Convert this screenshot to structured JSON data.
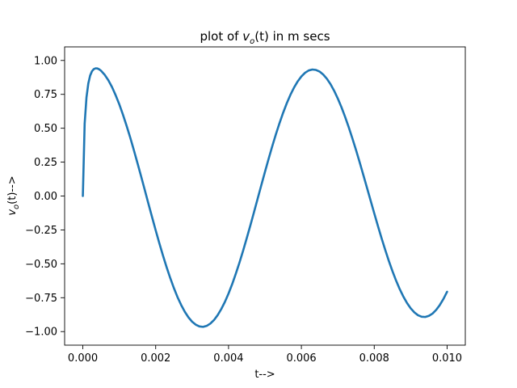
{
  "chart_data": {
    "type": "line",
    "title": {
      "prefix": "plot of ",
      "symbol": "v",
      "subscript": "o",
      "suffix": "(t) in m secs"
    },
    "xlabel": "t-->",
    "ylabel": {
      "symbol": "v",
      "subscript": "o",
      "suffix": "(t)-->"
    },
    "xlim": [
      -0.0005,
      0.0105
    ],
    "ylim": [
      -1.1,
      1.1
    ],
    "xticks": [
      0.0,
      0.002,
      0.004,
      0.006,
      0.008,
      0.01
    ],
    "xtick_labels": [
      "0.000",
      "0.002",
      "0.004",
      "0.006",
      "0.008",
      "0.010"
    ],
    "yticks": [
      -1.0,
      -0.75,
      -0.5,
      -0.25,
      0.0,
      0.25,
      0.5,
      0.75,
      1.0
    ],
    "ytick_labels": [
      "−1.00",
      "−0.75",
      "−0.50",
      "−0.25",
      "0.00",
      "0.25",
      "0.50",
      "0.75",
      "1.00"
    ],
    "grid": false,
    "series": [
      {
        "color": "#1f77b4",
        "x": [
          0.0,
          5e-05,
          0.0001,
          0.00015,
          0.0002,
          0.00025,
          0.0003,
          0.00035,
          0.0004,
          0.00045,
          0.0005,
          0.0006,
          0.0007,
          0.0008,
          0.0009,
          0.001,
          0.0011,
          0.0012,
          0.0013,
          0.0014,
          0.0015,
          0.0016,
          0.0017,
          0.0018,
          0.0019,
          0.002,
          0.0021,
          0.0022,
          0.0023,
          0.0024,
          0.0025,
          0.0026,
          0.0027,
          0.0028,
          0.0029,
          0.003,
          0.0031,
          0.0032,
          0.0033,
          0.0034,
          0.0035,
          0.0036,
          0.0037,
          0.0038,
          0.0039,
          0.004,
          0.0041,
          0.0042,
          0.0043,
          0.0044,
          0.0045,
          0.0046,
          0.0047,
          0.0048,
          0.0049,
          0.005,
          0.0051,
          0.0052,
          0.0053,
          0.0054,
          0.0055,
          0.0056,
          0.0057,
          0.0058,
          0.0059,
          0.006,
          0.0061,
          0.0062,
          0.0063,
          0.0064,
          0.0065,
          0.0066,
          0.0067,
          0.0068,
          0.0069,
          0.007,
          0.0071,
          0.0072,
          0.0073,
          0.0074,
          0.0075,
          0.0076,
          0.0077,
          0.0078,
          0.0079,
          0.008,
          0.0081,
          0.0082,
          0.0083,
          0.0084,
          0.0085,
          0.0086,
          0.0087,
          0.0088,
          0.0089,
          0.009,
          0.0091,
          0.0092,
          0.0093,
          0.0094,
          0.0095,
          0.0096,
          0.0097,
          0.0098,
          0.0099,
          0.01
        ],
        "y": [
          0.0,
          0.534,
          0.727,
          0.83,
          0.888,
          0.92,
          0.936,
          0.942,
          0.941,
          0.934,
          0.924,
          0.894,
          0.854,
          0.804,
          0.744,
          0.677,
          0.601,
          0.519,
          0.432,
          0.339,
          0.243,
          0.145,
          0.045,
          -0.056,
          -0.155,
          -0.253,
          -0.348,
          -0.439,
          -0.525,
          -0.605,
          -0.679,
          -0.746,
          -0.804,
          -0.854,
          -0.895,
          -0.927,
          -0.949,
          -0.962,
          -0.965,
          -0.958,
          -0.941,
          -0.915,
          -0.879,
          -0.834,
          -0.781,
          -0.719,
          -0.65,
          -0.573,
          -0.491,
          -0.403,
          -0.311,
          -0.216,
          -0.118,
          -0.019,
          0.08,
          0.178,
          0.274,
          0.367,
          0.455,
          0.538,
          0.615,
          0.685,
          0.747,
          0.801,
          0.846,
          0.882,
          0.909,
          0.926,
          0.933,
          0.93,
          0.918,
          0.896,
          0.865,
          0.825,
          0.776,
          0.719,
          0.655,
          0.584,
          0.507,
          0.425,
          0.339,
          0.249,
          0.156,
          0.062,
          -0.033,
          -0.127,
          -0.22,
          -0.31,
          -0.396,
          -0.478,
          -0.554,
          -0.624,
          -0.687,
          -0.742,
          -0.789,
          -0.828,
          -0.858,
          -0.879,
          -0.89,
          -0.892,
          -0.884,
          -0.867,
          -0.84,
          -0.804,
          -0.759,
          -0.706
        ]
      }
    ]
  }
}
